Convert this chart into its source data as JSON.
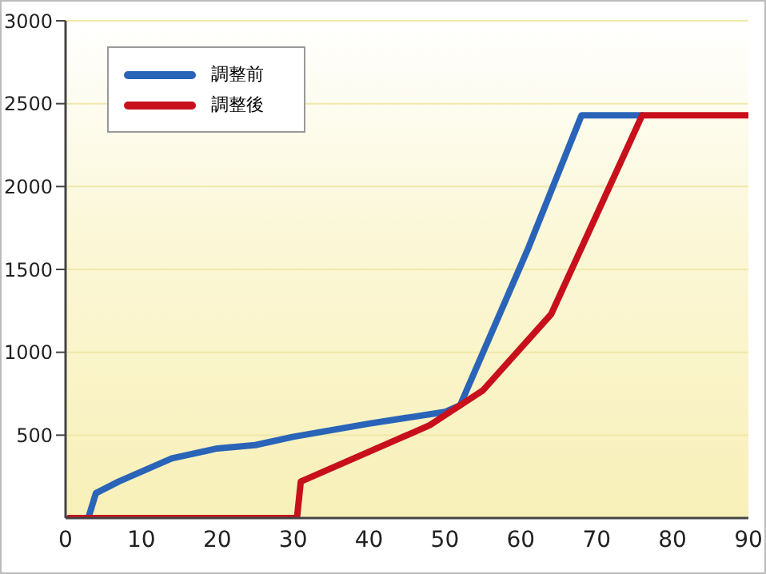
{
  "chart_data": {
    "type": "line",
    "xlim": [
      0,
      90
    ],
    "xticks": [
      0,
      10,
      20,
      30,
      40,
      50,
      60,
      70,
      80,
      90
    ],
    "ylim": [
      0,
      3000
    ],
    "yticks": [
      500,
      1000,
      1500,
      2000,
      2500,
      3000
    ],
    "grid": "y",
    "legend": "top left",
    "marker": "none",
    "line_style": "solid",
    "series": [
      {
        "name": "調整前",
        "color": "#2a64b8",
        "x": [
          0.5,
          3,
          4,
          7,
          14,
          20,
          25,
          30,
          40,
          50,
          52,
          61,
          68,
          76
        ],
        "values": [
          0,
          0,
          150,
          220,
          360,
          420,
          440,
          490,
          570,
          640,
          680,
          1630,
          2430,
          2430
        ]
      },
      {
        "name": "調整後",
        "color": "#c8101c",
        "x": [
          0.5,
          30.5,
          31,
          48,
          50,
          55,
          64,
          76,
          90
        ],
        "values": [
          0,
          0,
          220,
          560,
          620,
          770,
          1230,
          2430,
          2430
        ]
      }
    ]
  }
}
